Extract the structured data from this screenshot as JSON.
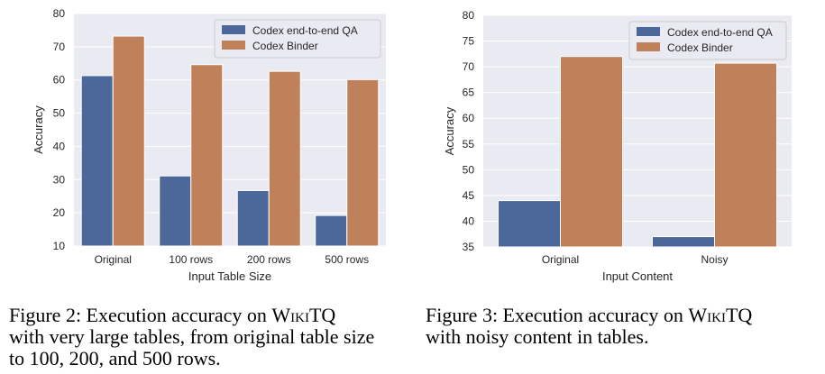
{
  "colors": {
    "qa": "#4c679a",
    "binder": "#c0815a",
    "plot_bg": "#eaeaf2",
    "grid": "#ffffff"
  },
  "chart_data": [
    {
      "type": "bar",
      "categories": [
        "Original",
        "100 rows",
        "200 rows",
        "500 rows"
      ],
      "series": [
        {
          "name": "Codex end-to-end QA",
          "values": [
            61.3,
            31.1,
            26.7,
            19.2
          ]
        },
        {
          "name": "Codex Binder",
          "values": [
            73.2,
            64.6,
            62.6,
            60.1
          ]
        }
      ],
      "xlabel": "Input Table Size",
      "ylabel": "Accuracy",
      "ylim": [
        10,
        80
      ],
      "yticks": [
        10,
        20,
        30,
        40,
        50,
        60,
        70,
        80
      ],
      "grid": true,
      "legend": "top-right"
    },
    {
      "type": "bar",
      "categories": [
        "Original",
        "Noisy"
      ],
      "series": [
        {
          "name": "Codex end-to-end QA",
          "values": [
            44.0,
            37.0
          ]
        },
        {
          "name": "Codex Binder",
          "values": [
            72.0,
            70.7
          ]
        }
      ],
      "xlabel": "Input Content",
      "ylabel": "Accuracy",
      "ylim": [
        35,
        80
      ],
      "yticks": [
        35,
        40,
        45,
        50,
        55,
        60,
        65,
        70,
        75,
        80
      ],
      "grid": true,
      "legend": "top-right"
    }
  ],
  "captions": {
    "fig2": {
      "prefix": "Figure 2: Execution accuracy on ",
      "dataset": "WikiTQ",
      "line2": "with very large tables, from original table size",
      "line3": "to 100, 200, and 500 rows."
    },
    "fig3": {
      "prefix": "Figure 3: Execution accuracy on ",
      "dataset": "WikiTQ",
      "line2": "with noisy content in tables."
    }
  }
}
